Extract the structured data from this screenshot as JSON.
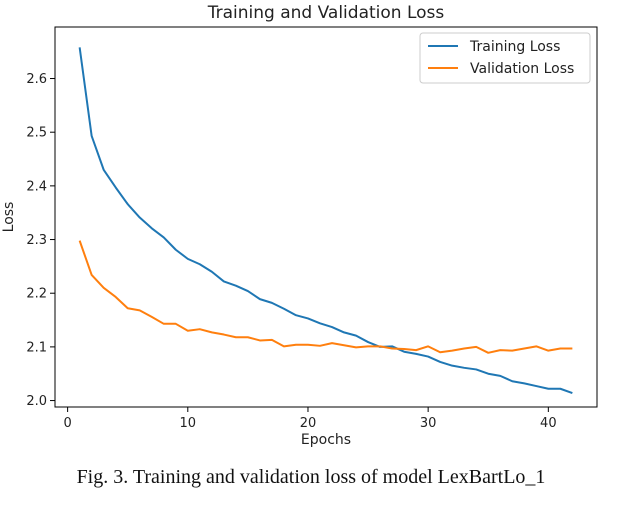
{
  "caption": "Fig. 3. Training and validation loss of model LexBartLo_1",
  "colors": {
    "training": "#1f77b4",
    "validation": "#ff7f0e"
  },
  "chart_data": {
    "type": "line",
    "title": "Training and Validation Loss",
    "xlabel": "Epochs",
    "ylabel": "Loss",
    "xlim": [
      -1.05,
      44.05
    ],
    "ylim": [
      1.988,
      2.696
    ],
    "xticks": [
      0,
      10,
      20,
      30,
      40
    ],
    "yticks": [
      2.0,
      2.1,
      2.2,
      2.3,
      2.4,
      2.5,
      2.6
    ],
    "yticklabels": [
      "2.0",
      "2.1",
      "2.2",
      "2.3",
      "2.4",
      "2.5",
      "2.6"
    ],
    "legend": "top-right",
    "x": [
      1,
      2,
      3,
      4,
      5,
      6,
      7,
      8,
      9,
      10,
      11,
      12,
      13,
      14,
      15,
      16,
      17,
      18,
      19,
      20,
      21,
      22,
      23,
      24,
      25,
      26,
      27,
      28,
      29,
      30,
      31,
      32,
      33,
      34,
      35,
      36,
      37,
      38,
      39,
      40,
      41,
      42
    ],
    "series": [
      {
        "name": "Training Loss",
        "color": "#1f77b4",
        "values": [
          2.658,
          2.493,
          2.43,
          2.397,
          2.366,
          2.341,
          2.321,
          2.304,
          2.281,
          2.264,
          2.254,
          2.24,
          2.222,
          2.214,
          2.204,
          2.189,
          2.182,
          2.171,
          2.159,
          2.153,
          2.144,
          2.137,
          2.127,
          2.121,
          2.109,
          2.1,
          2.101,
          2.091,
          2.087,
          2.082,
          2.072,
          2.065,
          2.061,
          2.058,
          2.05,
          2.046,
          2.036,
          2.032,
          2.027,
          2.022,
          2.022,
          2.014
        ]
      },
      {
        "name": "Validation Loss",
        "color": "#ff7f0e",
        "values": [
          2.298,
          2.234,
          2.21,
          2.193,
          2.172,
          2.168,
          2.156,
          2.143,
          2.143,
          2.13,
          2.133,
          2.127,
          2.123,
          2.118,
          2.118,
          2.112,
          2.113,
          2.101,
          2.104,
          2.104,
          2.102,
          2.107,
          2.103,
          2.099,
          2.101,
          2.101,
          2.097,
          2.096,
          2.094,
          2.101,
          2.09,
          2.093,
          2.097,
          2.1,
          2.089,
          2.094,
          2.093,
          2.097,
          2.101,
          2.093,
          2.097,
          2.097
        ]
      }
    ]
  }
}
